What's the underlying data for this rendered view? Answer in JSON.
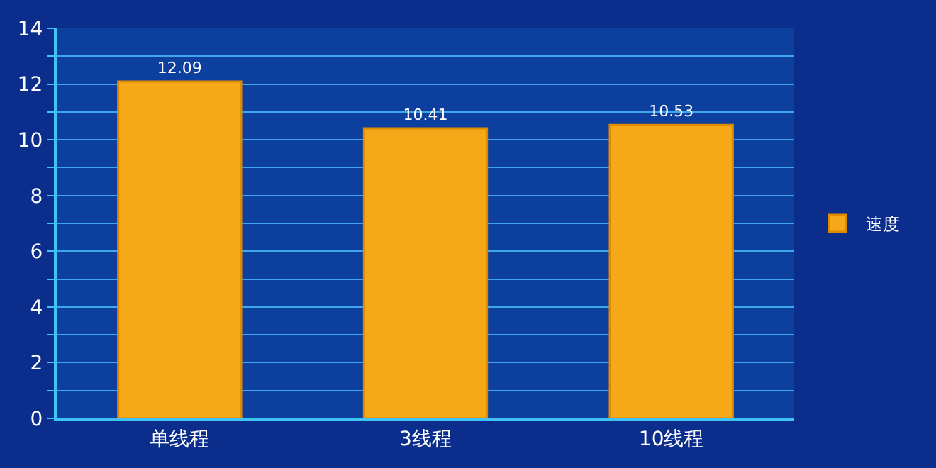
{
  "chart_data": {
    "type": "bar",
    "categories": [
      "单线程",
      "3线程",
      "10线程"
    ],
    "series": [
      {
        "name": "速度",
        "color": "#f5a818",
        "values": [
          12.09,
          10.41,
          10.53
        ]
      }
    ],
    "ylim": [
      0,
      14
    ],
    "yticks": [
      0,
      {
        "value": 1,
        "label": null
      },
      2,
      {
        "value": 3,
        "label": null
      },
      4,
      {
        "value": 5,
        "label": null
      },
      6,
      {
        "value": 7,
        "label": null
      },
      8,
      {
        "value": 9,
        "label": null
      },
      10,
      {
        "value": 11,
        "label": null
      },
      12,
      {
        "value": 13,
        "label": null
      },
      14
    ],
    "grid": "y",
    "legend": "right",
    "data_labels": true
  }
}
